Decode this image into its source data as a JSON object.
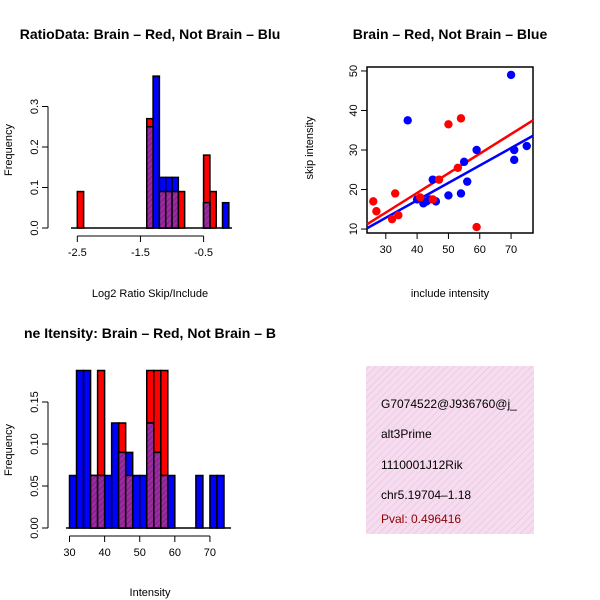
{
  "colors": {
    "brain": "#ff0000",
    "not_brain": "#0000ff",
    "overlap_fill": "#9e2a9e",
    "overlap_hatch": "#6a1e8a",
    "info_bg": "#f6dcef",
    "info_hatch": "#e9b9dc",
    "pval": "#8b0000"
  },
  "chart_data": [
    {
      "type": "bar",
      "title": "RatioData: Brain – Red, Not Brain – Blu",
      "xlabel": "Log2 Ratio Skip/Include",
      "ylabel": "Frequency",
      "bin_width": 0.1,
      "xlim": [
        -2.6,
        -0.05
      ],
      "ylim": [
        0,
        0.4
      ],
      "xticks": [
        -2.5,
        -1.5,
        -0.5
      ],
      "yticks": [
        0.0,
        0.1,
        0.2,
        0.3
      ],
      "series": [
        {
          "name": "Brain",
          "color": "red",
          "bins": [
            [
              -2.5,
              0.09
            ],
            [
              -1.4,
              0.27
            ],
            [
              -1.2,
              0.09
            ],
            [
              -1.1,
              0.09
            ],
            [
              -1.0,
              0.09
            ],
            [
              -0.9,
              0.09
            ],
            [
              -0.5,
              0.18
            ],
            [
              -0.4,
              0.09
            ]
          ]
        },
        {
          "name": "Not Brain",
          "color": "blue",
          "bins": [
            [
              -1.4,
              0.25
            ],
            [
              -1.3,
              0.375
            ],
            [
              -1.2,
              0.125
            ],
            [
              -1.1,
              0.125
            ],
            [
              -1.0,
              0.125
            ],
            [
              -0.5,
              0.0625
            ],
            [
              -0.2,
              0.0625
            ]
          ]
        }
      ]
    },
    {
      "type": "scatter",
      "title": "Brain – Red, Not Brain – Blue",
      "xlabel": "include intensity",
      "ylabel": "skip intensity",
      "xlim": [
        24,
        77
      ],
      "ylim": [
        9,
        51
      ],
      "xticks": [
        30,
        40,
        50,
        60,
        70
      ],
      "yticks": [
        10,
        20,
        30,
        40,
        50
      ],
      "series": [
        {
          "name": "Brain",
          "color": "red",
          "points": [
            [
              26,
              17
            ],
            [
              27,
              14.5
            ],
            [
              32,
              12.5
            ],
            [
              33,
              19
            ],
            [
              34,
              13.5
            ],
            [
              41,
              18
            ],
            [
              45,
              17.5
            ],
            [
              47,
              22.5
            ],
            [
              50,
              36.5
            ],
            [
              53,
              25.5
            ],
            [
              54,
              38
            ],
            [
              59,
              10.5
            ]
          ],
          "fit": [
            [
              24,
              11.2
            ],
            [
              77,
              37.5
            ]
          ]
        },
        {
          "name": "Not Brain",
          "color": "blue",
          "points": [
            [
              37,
              37.5
            ],
            [
              40,
              17.5
            ],
            [
              42,
              16.5
            ],
            [
              43,
              17
            ],
            [
              44,
              17.5
            ],
            [
              45,
              22.5
            ],
            [
              46,
              17
            ],
            [
              50,
              18.5
            ],
            [
              54,
              19
            ],
            [
              55,
              27
            ],
            [
              56,
              22
            ],
            [
              59,
              30
            ],
            [
              70,
              49
            ],
            [
              71,
              27.5
            ],
            [
              71,
              30
            ],
            [
              75,
              31
            ]
          ],
          "fit": [
            [
              24,
              10.2
            ],
            [
              77,
              33.6
            ]
          ]
        }
      ]
    },
    {
      "type": "bar",
      "title": "ne Itensity: Brain – Red, Not Brain – B",
      "xlabel": "Intensity",
      "ylabel": "Frequency",
      "bin_width": 2,
      "xlim": [
        29,
        76
      ],
      "ylim": [
        0,
        0.2
      ],
      "xticks": [
        30,
        40,
        50,
        60,
        70
      ],
      "yticks": [
        0.0,
        0.05,
        0.1,
        0.15
      ],
      "series": [
        {
          "name": "Brain",
          "color": "red",
          "bins": [
            [
              36,
              0.0625
            ],
            [
              38,
              0.1875
            ],
            [
              44,
              0.125
            ],
            [
              46,
              0.0625
            ],
            [
              52,
              0.1875
            ],
            [
              54,
              0.1875
            ],
            [
              56,
              0.1875
            ]
          ]
        },
        {
          "name": "Not Brain",
          "color": "blue",
          "bins": [
            [
              30,
              0.0625
            ],
            [
              32,
              0.1875
            ],
            [
              34,
              0.1875
            ],
            [
              36,
              0.0625
            ],
            [
              38,
              0.0625
            ],
            [
              40,
              0.0625
            ],
            [
              42,
              0.125
            ],
            [
              44,
              0.09
            ],
            [
              46,
              0.09
            ],
            [
              48,
              0.0625
            ],
            [
              50,
              0.0625
            ],
            [
              52,
              0.125
            ],
            [
              54,
              0.09
            ],
            [
              56,
              0.0625
            ],
            [
              58,
              0.0625
            ],
            [
              66,
              0.0625
            ],
            [
              70,
              0.0625
            ],
            [
              72,
              0.0625
            ]
          ]
        }
      ]
    }
  ],
  "info_box": {
    "id_line": "G7074522@J936760@j_",
    "event_type": "alt3Prime",
    "gene": "1110001J12Rik",
    "location": "chr5.19704–1.18",
    "pval": "Pval: 0.496416"
  }
}
